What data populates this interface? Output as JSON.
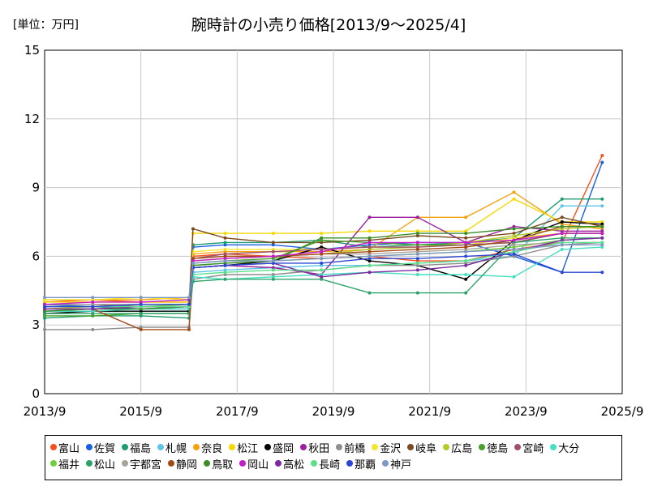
{
  "chart_data": {
    "type": "line",
    "title": "腕時計の小売り価格[2013/9～2025/4]",
    "unit_label": "[単位：万円]",
    "xlabel": "",
    "ylabel": "",
    "ylim": [
      0,
      15
    ],
    "yticks": [
      "0",
      "3",
      "6",
      "9",
      "12",
      "15"
    ],
    "x_range": [
      "2013-09",
      "2025-09"
    ],
    "xticks": [
      "2013/9",
      "2015/9",
      "2017/9",
      "2019/9",
      "2021/9",
      "2023/9",
      "2025/9"
    ],
    "grid": true,
    "legend_position": "bottom",
    "x_dates": [
      "2013-09",
      "2014-09",
      "2015-09",
      "2016-09",
      "2016-10",
      "2017-06",
      "2018-06",
      "2019-06",
      "2020-06",
      "2021-06",
      "2022-06",
      "2023-06",
      "2024-06",
      "2025-04"
    ],
    "series": [
      {
        "name": "富山",
        "color": "#f4511e",
        "values": [
          4.0,
          4.1,
          4.0,
          4.0,
          6.0,
          6.1,
          6.0,
          5.9,
          6.0,
          5.8,
          5.8,
          6.3,
          6.6,
          10.4
        ]
      },
      {
        "name": "佐賀",
        "color": "#1a5fe0",
        "values": [
          3.9,
          3.8,
          3.7,
          3.7,
          6.4,
          6.5,
          6.5,
          6.3,
          6.5,
          6.6,
          6.6,
          6.0,
          5.3,
          10.1
        ]
      },
      {
        "name": "福島",
        "color": "#1e9b6f",
        "values": [
          3.3,
          3.4,
          3.4,
          3.3,
          6.5,
          6.6,
          6.6,
          6.7,
          6.4,
          6.5,
          6.6,
          6.8,
          8.5,
          8.5
        ]
      },
      {
        "name": "札幌",
        "color": "#5ec5e8",
        "values": [
          3.6,
          3.6,
          3.6,
          3.6,
          5.3,
          5.4,
          5.5,
          5.6,
          5.6,
          5.7,
          5.8,
          6.0,
          8.2,
          8.2
        ]
      },
      {
        "name": "奈良",
        "color": "#f2a20f",
        "values": [
          4.1,
          4.1,
          4.1,
          4.2,
          6.1,
          6.2,
          6.2,
          6.2,
          6.3,
          7.7,
          7.7,
          8.8,
          7.4,
          7.2
        ]
      },
      {
        "name": "松江",
        "color": "#f5d800",
        "values": [
          4.0,
          4.0,
          4.0,
          4.0,
          7.0,
          7.0,
          7.0,
          7.0,
          7.1,
          7.1,
          7.1,
          8.5,
          7.5,
          7.5
        ]
      },
      {
        "name": "盛岡",
        "color": "#000000",
        "values": [
          3.5,
          3.6,
          3.6,
          3.6,
          5.5,
          5.6,
          5.8,
          6.4,
          5.8,
          5.6,
          5.0,
          6.7,
          7.5,
          7.4
        ]
      },
      {
        "name": "秋田",
        "color": "#9c1f9e",
        "values": [
          3.6,
          3.7,
          3.7,
          3.8,
          5.5,
          5.6,
          5.5,
          5.2,
          7.7,
          7.7,
          6.6,
          7.3,
          7.1,
          7.1
        ]
      },
      {
        "name": "前橋",
        "color": "#8e8e8e",
        "values": [
          2.8,
          2.8,
          2.9,
          2.9,
          5.0,
          5.2,
          5.2,
          5.4,
          5.6,
          5.6,
          5.7,
          6.0,
          6.5,
          6.6
        ]
      },
      {
        "name": "金沢",
        "color": "#f7e42f",
        "values": [
          4.1,
          4.1,
          4.2,
          4.1,
          6.2,
          6.3,
          6.3,
          6.3,
          6.4,
          6.4,
          6.5,
          6.8,
          7.0,
          7.0
        ]
      },
      {
        "name": "岐阜",
        "color": "#7a4a20",
        "values": [
          3.9,
          3.9,
          3.8,
          3.8,
          7.2,
          6.8,
          6.6,
          6.6,
          6.7,
          6.9,
          6.8,
          7.0,
          7.7,
          7.3
        ]
      },
      {
        "name": "広島",
        "color": "#b6c92b",
        "values": [
          3.7,
          3.8,
          3.8,
          3.8,
          5.8,
          5.9,
          6.0,
          6.1,
          6.3,
          6.4,
          6.6,
          6.9,
          7.2,
          7.3
        ]
      },
      {
        "name": "徳島",
        "color": "#4aa02c",
        "values": [
          3.4,
          3.4,
          3.5,
          3.5,
          5.7,
          5.8,
          5.9,
          6.7,
          6.6,
          6.5,
          6.5,
          6.6,
          7.0,
          7.0
        ]
      },
      {
        "name": "宮崎",
        "color": "#9e4f6e",
        "values": [
          3.8,
          3.8,
          3.9,
          3.9,
          5.9,
          6.1,
          6.2,
          6.3,
          6.4,
          6.4,
          6.5,
          6.6,
          7.0,
          7.0
        ]
      },
      {
        "name": "大分",
        "color": "#44e0c0",
        "values": [
          3.6,
          3.6,
          3.7,
          3.7,
          5.1,
          5.0,
          5.1,
          5.2,
          5.3,
          5.2,
          5.2,
          5.1,
          6.3,
          6.4
        ]
      },
      {
        "name": "福井",
        "color": "#6ed03c",
        "values": [
          3.8,
          3.8,
          3.8,
          3.9,
          5.6,
          5.7,
          5.8,
          5.9,
          6.0,
          6.1,
          6.2,
          6.4,
          6.7,
          6.8
        ]
      },
      {
        "name": "松山",
        "color": "#2ca26a",
        "values": [
          3.5,
          3.5,
          3.5,
          3.5,
          4.9,
          5.0,
          5.0,
          5.0,
          4.4,
          4.4,
          4.4,
          6.6,
          6.8,
          6.8
        ]
      },
      {
        "name": "宇都宮",
        "color": "#a8a39a",
        "values": [
          3.9,
          3.9,
          3.9,
          3.9,
          5.9,
          6.0,
          6.0,
          6.1,
          6.1,
          6.2,
          6.3,
          6.5,
          6.6,
          6.6
        ]
      },
      {
        "name": "静岡",
        "color": "#a34a14",
        "values": [
          3.7,
          3.7,
          2.8,
          2.8,
          5.9,
          6.0,
          6.0,
          6.1,
          6.2,
          6.3,
          6.4,
          6.7,
          7.3,
          7.3
        ]
      },
      {
        "name": "鳥取",
        "color": "#3b8e2a",
        "values": [
          3.6,
          3.7,
          3.7,
          3.8,
          5.6,
          5.7,
          5.8,
          6.8,
          6.8,
          7.0,
          7.0,
          7.2,
          7.3,
          7.3
        ]
      },
      {
        "name": "岡山",
        "color": "#c51bc9",
        "values": [
          3.9,
          4.0,
          4.0,
          4.1,
          5.8,
          5.9,
          6.0,
          6.2,
          6.6,
          6.6,
          6.6,
          6.7,
          7.0,
          7.0
        ]
      },
      {
        "name": "高松",
        "color": "#7b2aa0",
        "values": [
          3.7,
          3.7,
          3.8,
          3.8,
          5.5,
          5.6,
          5.7,
          5.1,
          5.3,
          5.4,
          5.6,
          6.2,
          6.7,
          6.8
        ]
      },
      {
        "name": "長崎",
        "color": "#58e08a",
        "values": [
          3.8,
          3.8,
          3.8,
          3.8,
          5.2,
          5.3,
          5.4,
          5.4,
          5.6,
          5.7,
          5.8,
          6.2,
          6.6,
          6.6
        ]
      },
      {
        "name": "那覇",
        "color": "#2a47d4",
        "values": [
          3.8,
          3.8,
          3.9,
          3.9,
          5.5,
          5.6,
          5.7,
          5.7,
          5.9,
          5.9,
          6.0,
          6.1,
          5.3,
          5.3
        ]
      },
      {
        "name": "神戸",
        "color": "#7f97c5",
        "values": [
          4.2,
          4.2,
          4.2,
          4.2,
          5.7,
          5.8,
          5.8,
          5.9,
          6.0,
          6.1,
          6.2,
          6.3,
          6.5,
          6.5
        ]
      }
    ]
  }
}
